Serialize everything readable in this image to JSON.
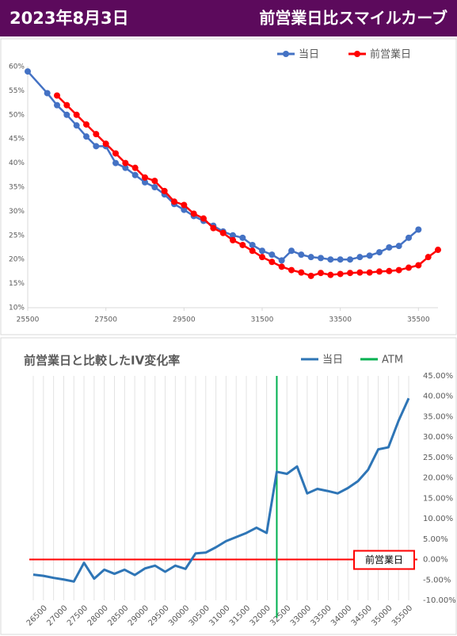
{
  "header": {
    "date": "2023年8月3日",
    "title": "前営業日比スマイルカーブ"
  },
  "chart_data": [
    {
      "type": "line",
      "legend": "top-right",
      "xlim": [
        25500,
        36000
      ],
      "xticks": [
        25500,
        27500,
        29500,
        31500,
        33500,
        35500
      ],
      "ylim": [
        10,
        60
      ],
      "yticks": [
        {
          "value": 10,
          "label": "10%"
        },
        {
          "value": 15,
          "label": "15%"
        },
        {
          "value": 20,
          "label": "20%"
        },
        {
          "value": 25,
          "label": "25%"
        },
        {
          "value": 30,
          "label": "30%"
        },
        {
          "value": 35,
          "label": "35%"
        },
        {
          "value": 40,
          "label": "40%"
        },
        {
          "value": 45,
          "label": "45%"
        },
        {
          "value": 50,
          "label": "50%"
        },
        {
          "value": 55,
          "label": "55%"
        },
        {
          "value": 60,
          "label": "60%"
        }
      ],
      "grid": false,
      "markers": true,
      "series": [
        {
          "name": "当日",
          "color": "#4472c4",
          "x": [
            25500,
            26000,
            26250,
            26500,
            26750,
            27000,
            27250,
            27500,
            27750,
            28000,
            28250,
            28500,
            28750,
            29000,
            29250,
            29500,
            29750,
            30000,
            30250,
            30500,
            30750,
            31000,
            31250,
            31500,
            31750,
            32000,
            32250,
            32500,
            32750,
            33000,
            33250,
            33500,
            33750,
            34000,
            34250,
            34500,
            34750,
            35000,
            35250,
            35500
          ],
          "values": [
            59,
            54.5,
            52,
            50,
            47.8,
            45.5,
            43.5,
            43.5,
            40,
            39,
            37.5,
            36,
            35,
            33.5,
            31.5,
            30.3,
            29,
            28,
            27,
            25.8,
            25,
            24.5,
            23,
            21.8,
            21,
            19.8,
            21.8,
            21,
            20.5,
            20.3,
            20,
            20,
            20,
            20.5,
            20.8,
            21.5,
            22.5,
            22.8,
            24.5,
            26.2
          ]
        },
        {
          "name": "前営業日",
          "color": "#ff0000",
          "x": [
            26250,
            26500,
            26750,
            27000,
            27250,
            27500,
            27750,
            28000,
            28250,
            28500,
            28750,
            29000,
            29250,
            29500,
            29750,
            30000,
            30250,
            30500,
            30750,
            31000,
            31250,
            31500,
            31750,
            32000,
            32250,
            32500,
            32750,
            33000,
            33250,
            33500,
            33750,
            34000,
            34250,
            34500,
            34750,
            35000,
            35250,
            35500,
            35750,
            36000
          ],
          "values": [
            54,
            52,
            50,
            48,
            46,
            44,
            42,
            40,
            39,
            37,
            36.3,
            34.2,
            32,
            31.3,
            29.5,
            28.5,
            26.5,
            25.5,
            24,
            23,
            21.8,
            20.5,
            19.5,
            18.5,
            17.8,
            17.3,
            16.6,
            17.2,
            16.8,
            17,
            17.2,
            17.3,
            17.3,
            17.5,
            17.6,
            17.8,
            18.3,
            18.8,
            20.5,
            22
          ]
        }
      ]
    },
    {
      "type": "line",
      "title": "前営業日と比較したIV変化率",
      "legend": "top-right",
      "y_axis_side": "right",
      "grid": "x",
      "x": [
        26250,
        26500,
        26750,
        27000,
        27250,
        27500,
        27750,
        28000,
        28250,
        28500,
        28750,
        29000,
        29250,
        29500,
        29750,
        30000,
        30250,
        30500,
        30750,
        31000,
        31250,
        31500,
        31750,
        32000,
        32250,
        32500,
        32750,
        33000,
        33250,
        33500,
        33750,
        34000,
        34250,
        34500,
        34750,
        35000,
        35250,
        35500
      ],
      "xlim": [
        26250,
        35500
      ],
      "xticks": [
        26500,
        27000,
        27500,
        28000,
        28500,
        29000,
        29500,
        30000,
        30500,
        31000,
        31500,
        32000,
        32500,
        33000,
        33500,
        34000,
        34500,
        35000,
        35500
      ],
      "ylim": [
        -10,
        45
      ],
      "yticks": [
        {
          "value": -10,
          "label": "-10.00%"
        },
        {
          "value": -5,
          "label": "-5.00%"
        },
        {
          "value": 0,
          "label": "0.00%"
        },
        {
          "value": 5,
          "label": "5.00%"
        },
        {
          "value": 10,
          "label": "10.00%"
        },
        {
          "value": 15,
          "label": "15.00%"
        },
        {
          "value": 20,
          "label": "20.00%"
        },
        {
          "value": 25,
          "label": "25.00%"
        },
        {
          "value": 30,
          "label": "30.00%"
        },
        {
          "value": 35,
          "label": "35.00%"
        },
        {
          "value": 40,
          "label": "40.00%"
        },
        {
          "value": 45,
          "label": "45.00%"
        }
      ],
      "series": [
        {
          "name": "当日",
          "color": "#2e75b6",
          "values": [
            -3.7,
            -4.0,
            -4.5,
            -4.9,
            -5.4,
            -0.8,
            -4.7,
            -2.5,
            -3.5,
            -2.5,
            -3.8,
            -2.2,
            -1.5,
            -3.0,
            -1.5,
            -2.3,
            1.5,
            1.7,
            3.0,
            4.5,
            5.5,
            6.5,
            7.8,
            6.5,
            21.5,
            21,
            22.8,
            16.2,
            17.3,
            16.8,
            16.2,
            17.5,
            19.2,
            22,
            27,
            27.5,
            34,
            39.5
          ]
        }
      ],
      "vline": {
        "name": "ATM",
        "color": "#00b050",
        "x": 32250
      },
      "hline": {
        "value": 0,
        "label": "前営業日",
        "color": "#ff0000"
      }
    }
  ]
}
